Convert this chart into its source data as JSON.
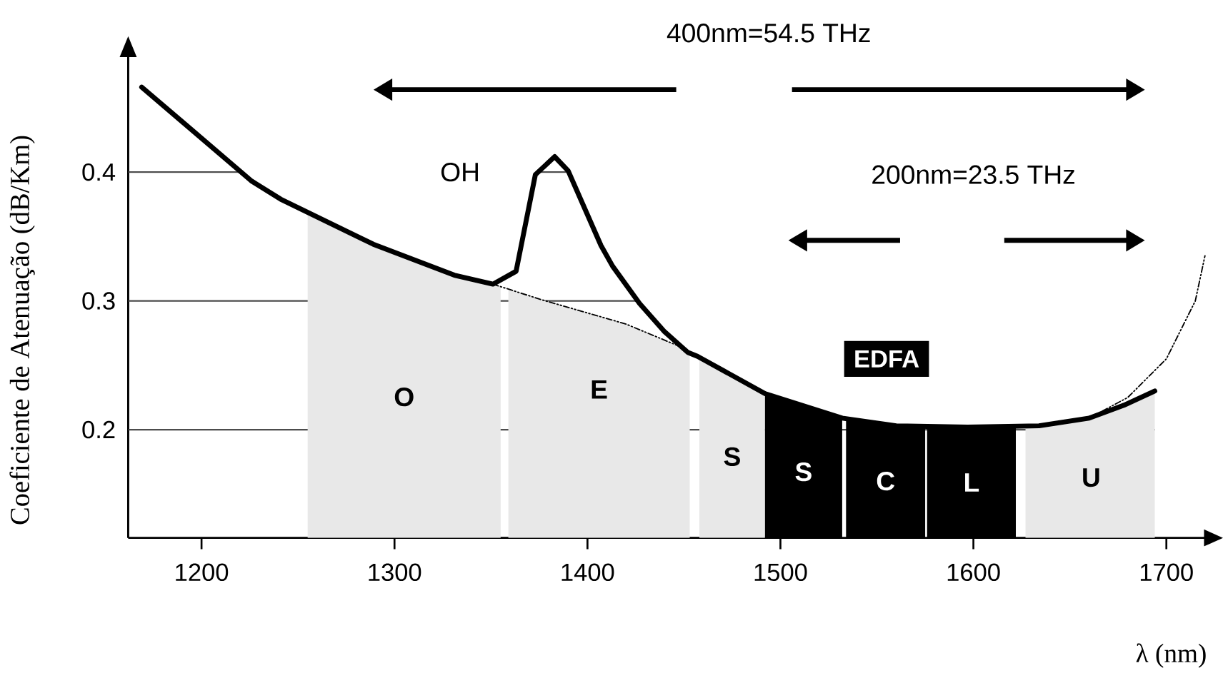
{
  "chart_data": {
    "type": "line",
    "xlabel": "λ (nm)",
    "ylabel": "Coeficiente de Atenuação (dB/Km)",
    "xlim": [
      1162,
      1720
    ],
    "ylim": [
      0.116,
      0.49
    ],
    "xticks": [
      1200,
      1300,
      1400,
      1500,
      1600,
      1700
    ],
    "yticks": [
      0.2,
      0.3,
      0.4
    ],
    "grid": "y",
    "series": [
      {
        "color": "#000000",
        "line_style": "solid",
        "x": [
          1169,
          1226,
          1241,
          1289,
          1331,
          1351,
          1363,
          1373,
          1383,
          1390,
          1407,
          1413,
          1427,
          1440,
          1452,
          1457,
          1492,
          1532,
          1560,
          1597,
          1634,
          1660,
          1678,
          1694
        ],
        "values": [
          0.466,
          0.393,
          0.379,
          0.344,
          0.32,
          0.313,
          0.323,
          0.398,
          0.412,
          0.401,
          0.343,
          0.327,
          0.298,
          0.276,
          0.26,
          0.257,
          0.228,
          0.209,
          0.203,
          0.202,
          0.203,
          0.209,
          0.219,
          0.23
        ]
      },
      {
        "color": "#000000",
        "line_style": "dashdotted",
        "x": [
          1351,
          1376,
          1420,
          1452
        ],
        "values": [
          0.313,
          0.301,
          0.282,
          0.262
        ]
      },
      {
        "color": "#000000",
        "line_style": "dashdotted",
        "x": [
          1660,
          1680,
          1700,
          1715,
          1720
        ],
        "values": [
          0.209,
          0.225,
          0.255,
          0.3,
          0.335
        ]
      }
    ],
    "bands": [
      {
        "axis": "x",
        "from": 1255,
        "to": 1355,
        "label": "O",
        "color": "#e8e8e8"
      },
      {
        "axis": "x",
        "from": 1359,
        "to": 1453,
        "label": "E",
        "color": "#e8e8e8"
      },
      {
        "axis": "x",
        "from": 1458,
        "to": 1492,
        "label": "S",
        "color": "#e8e8e8"
      },
      {
        "axis": "x",
        "from": 1492,
        "to": 1532,
        "label": "S",
        "color": "#000000"
      },
      {
        "axis": "x",
        "from": 1534,
        "to": 1575,
        "label": "C",
        "color": "#000000"
      },
      {
        "axis": "x",
        "from": 1576,
        "to": 1622,
        "label": "L",
        "color": "#000000"
      },
      {
        "axis": "x",
        "from": 1627,
        "to": 1695,
        "label": "U",
        "color": "#e8e8e8"
      }
    ],
    "annotations": [
      "400nm=54.5 THz",
      "200nm=23.5 THz",
      "OH",
      "EDFA"
    ]
  }
}
